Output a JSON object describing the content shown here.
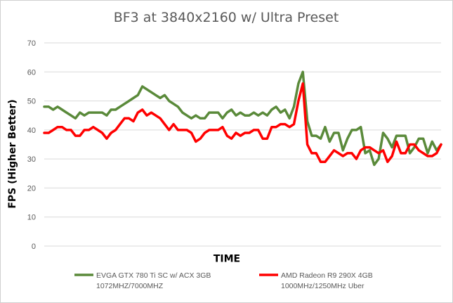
{
  "chart_data": {
    "type": "line",
    "title": "BF3 at 3840x2160 w/ Ultra Preset",
    "xlabel": "TIME",
    "ylabel": "FPS (Higher Better)",
    "ylim": [
      0,
      70
    ],
    "yticks": [
      0,
      10,
      20,
      30,
      40,
      50,
      60,
      70
    ],
    "grid": true,
    "legend_position": "bottom",
    "series": [
      {
        "name": "EVGA GTX 780 Ti SC w/ ACX 3GB",
        "name_line2": "1072MHZ/7000MHZ",
        "color": "#5a8a3a",
        "values": [
          48,
          48,
          47,
          48,
          47,
          46,
          45,
          44,
          46,
          45,
          46,
          46,
          46,
          46,
          45,
          47,
          47,
          48,
          49,
          50,
          51,
          52,
          55,
          54,
          53,
          52,
          51,
          52,
          50,
          49,
          48,
          46,
          45,
          44,
          45,
          44,
          44,
          46,
          46,
          46,
          44,
          46,
          47,
          45,
          46,
          45,
          45,
          46,
          45,
          46,
          45,
          47,
          48,
          46,
          47,
          44,
          48,
          56,
          60,
          43,
          38,
          38,
          37,
          41,
          36,
          39,
          39,
          33,
          37,
          40,
          40,
          41,
          32,
          33,
          28,
          30,
          39,
          37,
          34,
          38,
          38,
          38,
          32,
          34,
          37,
          37,
          32,
          36,
          33,
          35
        ]
      },
      {
        "name": "AMD Radeon R9 290X 4GB",
        "name_line2": "1000MHz/1250MHz Uber",
        "color": "#ff0000",
        "values": [
          39,
          39,
          40,
          41,
          41,
          40,
          40,
          38,
          38,
          40,
          40,
          41,
          40,
          39,
          37,
          39,
          40,
          42,
          44,
          44,
          43,
          46,
          47,
          45,
          46,
          45,
          44,
          42,
          40,
          42,
          40,
          40,
          40,
          39,
          36,
          37,
          39,
          40,
          40,
          40,
          41,
          38,
          37,
          39,
          38,
          39,
          39,
          40,
          40,
          37,
          37,
          41,
          41,
          42,
          42,
          41,
          42,
          50,
          56,
          35,
          32,
          32,
          29,
          29,
          31,
          33,
          32,
          31,
          32,
          32,
          30,
          33,
          34,
          34,
          33,
          32,
          33,
          29,
          31,
          36,
          32,
          32,
          35,
          35,
          33,
          32,
          31,
          31,
          32,
          35
        ]
      }
    ]
  }
}
